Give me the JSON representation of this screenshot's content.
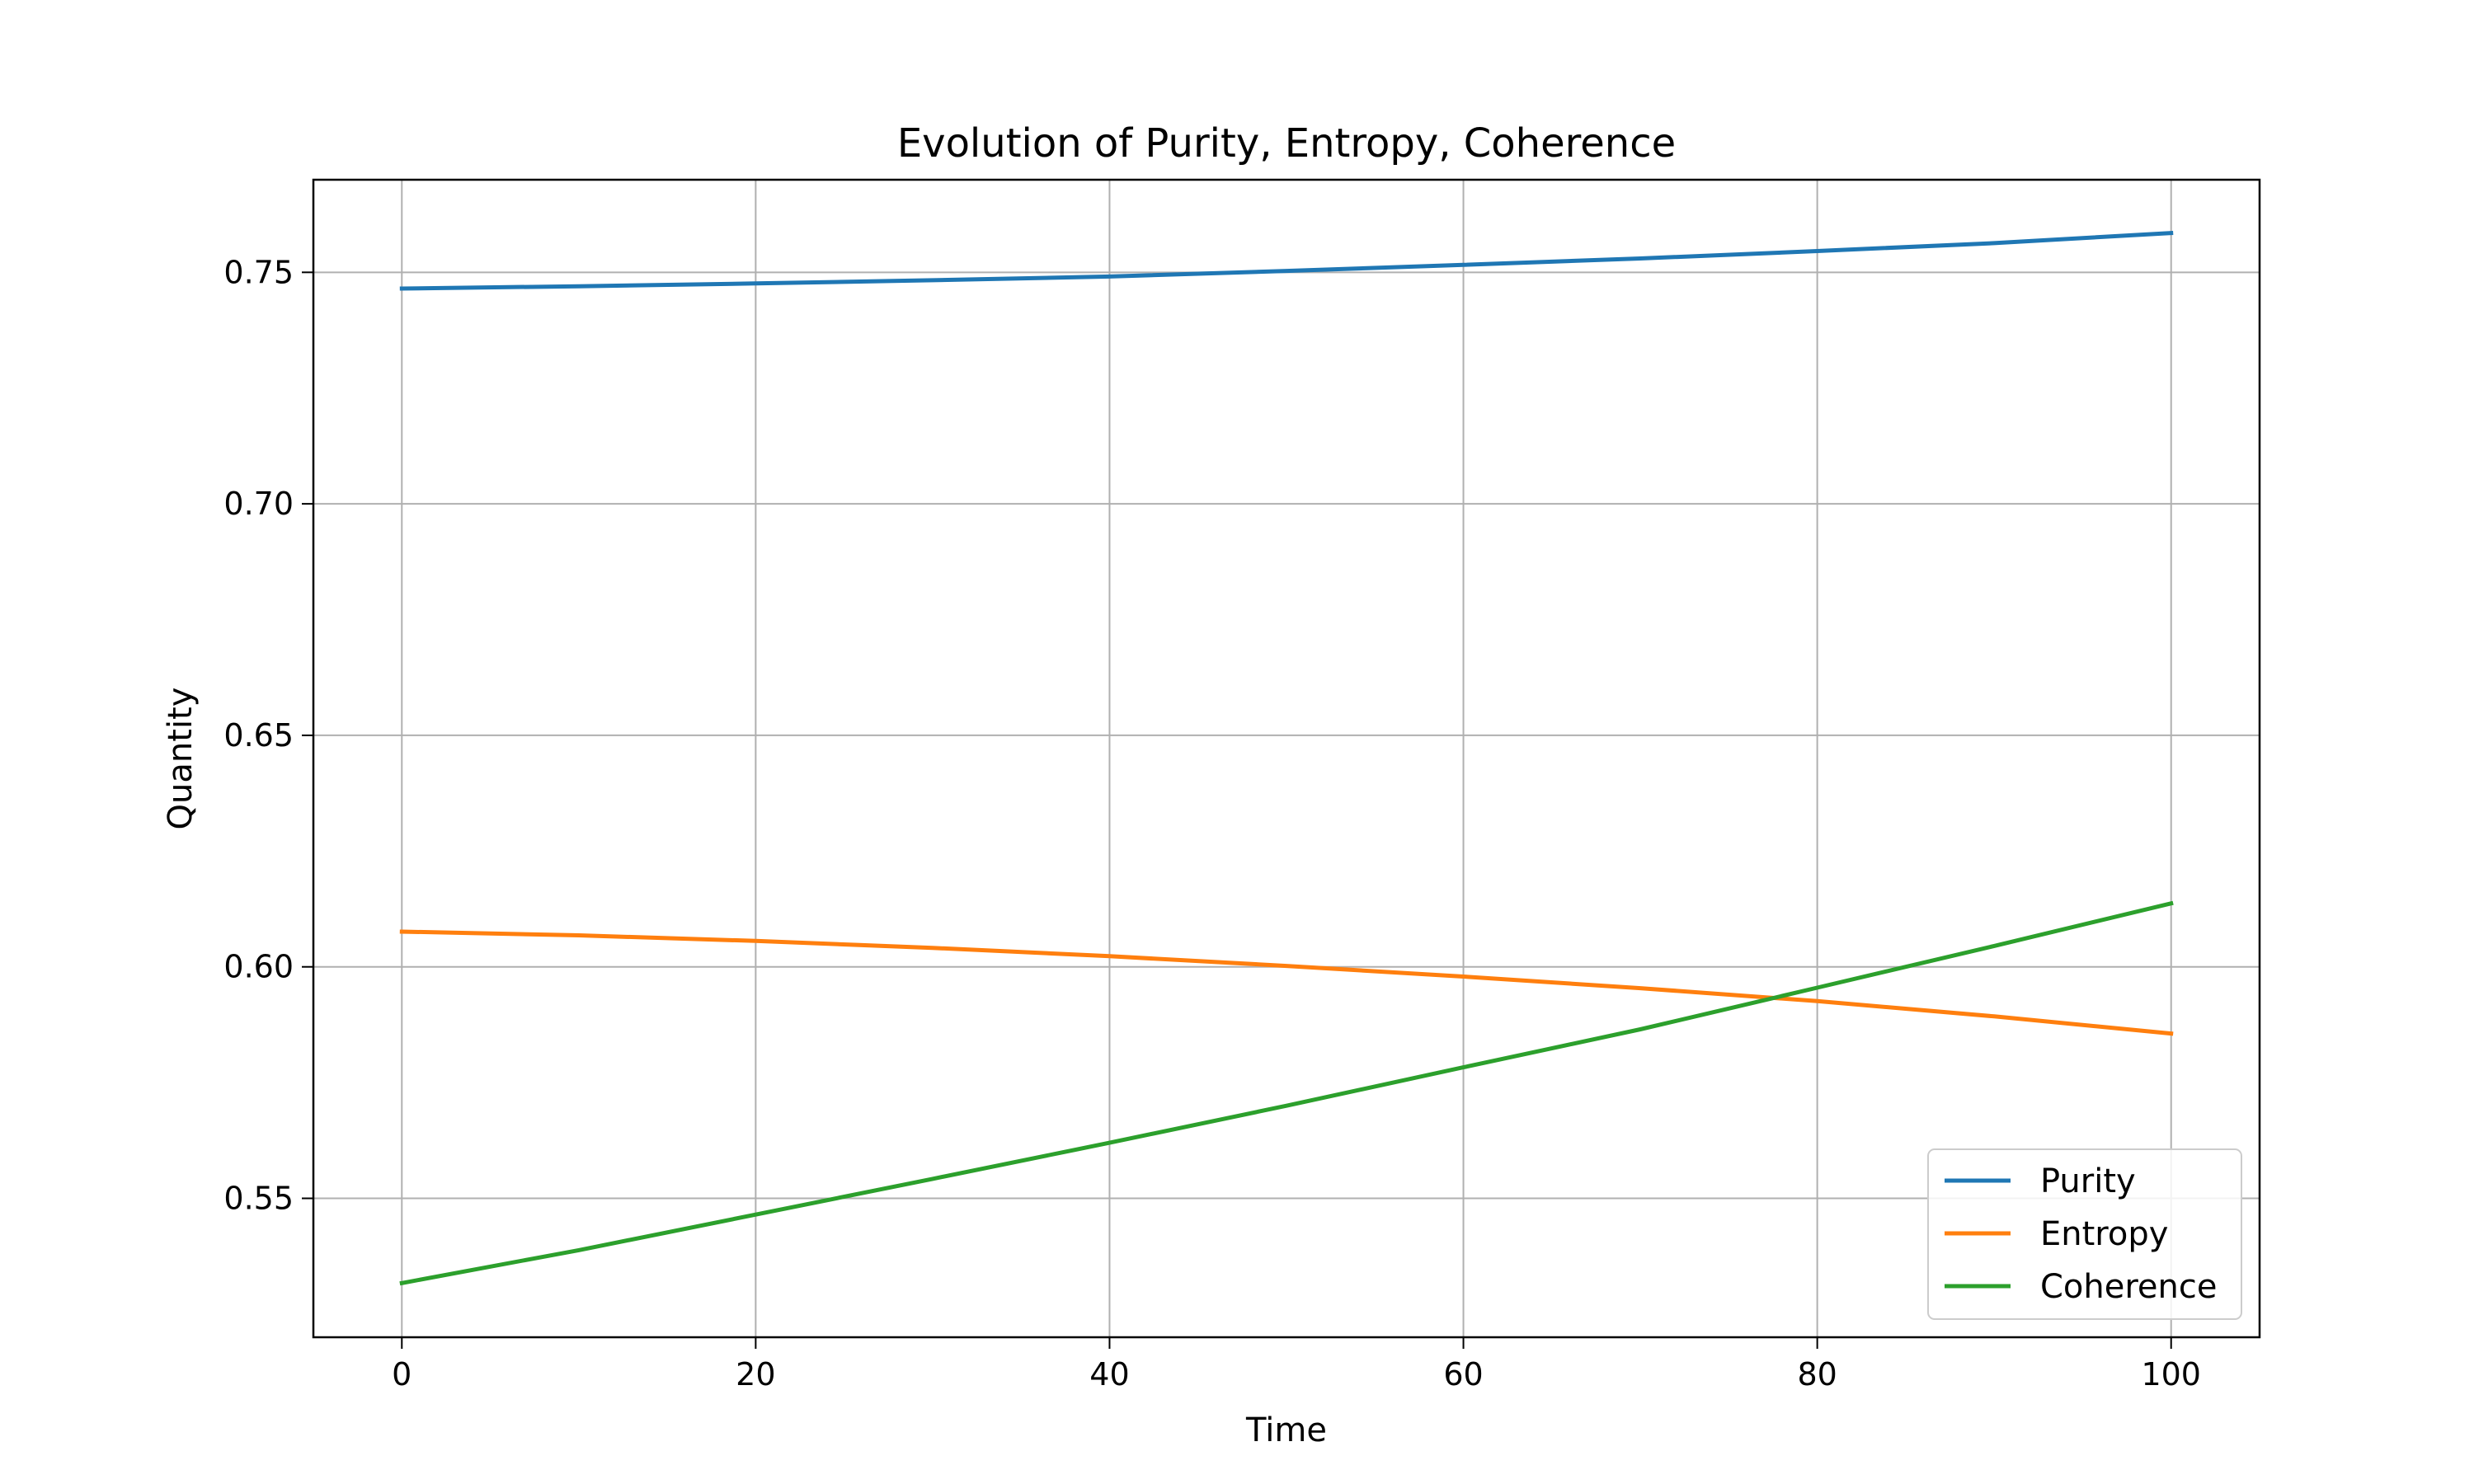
{
  "chart_data": {
    "type": "line",
    "title": "Evolution of Purity, Entropy, Coherence",
    "xlabel": "Time",
    "ylabel": "Quantity",
    "xlim": [
      -5,
      105
    ],
    "ylim": [
      0.52,
      0.77
    ],
    "xticks": [
      0,
      20,
      40,
      60,
      80,
      100
    ],
    "xtick_labels": [
      "0",
      "20",
      "40",
      "60",
      "80",
      "100"
    ],
    "yticks": [
      0.55,
      0.6,
      0.65,
      0.7,
      0.75
    ],
    "ytick_labels": [
      "0.55",
      "0.60",
      "0.65",
      "0.70",
      "0.75"
    ],
    "grid": true,
    "legend_position": "lower-right",
    "x": [
      0,
      10,
      20,
      30,
      40,
      50,
      60,
      70,
      80,
      90,
      100
    ],
    "series": [
      {
        "name": "Purity",
        "color": "#1f77b4",
        "values": [
          0.7465,
          0.747,
          0.7476,
          0.7483,
          0.7491,
          0.7503,
          0.7516,
          0.753,
          0.7546,
          0.7563,
          0.7585
        ]
      },
      {
        "name": "Entropy",
        "color": "#ff7f0e",
        "values": [
          0.6076,
          0.6068,
          0.6056,
          0.6041,
          0.6023,
          0.6002,
          0.5979,
          0.5954,
          0.5926,
          0.5893,
          0.5856
        ]
      },
      {
        "name": "Coherence",
        "color": "#2ca02c",
        "values": [
          0.5317,
          0.5388,
          0.5465,
          0.5542,
          0.562,
          0.57,
          0.5783,
          0.5865,
          0.5955,
          0.6045,
          0.6137
        ]
      }
    ]
  }
}
